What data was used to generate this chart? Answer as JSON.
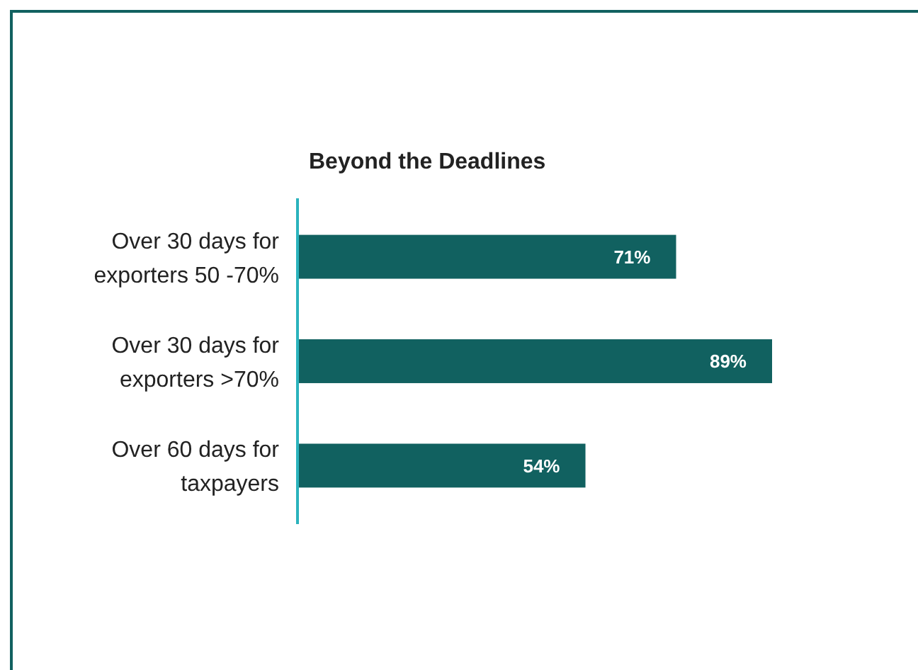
{
  "chart_data": {
    "type": "bar",
    "orientation": "horizontal",
    "title": "Beyond the Deadlines",
    "categories": [
      "Over 30 days for exporters 50 -70%",
      "Over 30 days for exporters >70%",
      "Over 60 days for taxpayers"
    ],
    "values": [
      71,
      89,
      54
    ],
    "value_labels": [
      "71%",
      "89%",
      "54%"
    ],
    "color": "#116160",
    "tick_labels": "y"
  }
}
